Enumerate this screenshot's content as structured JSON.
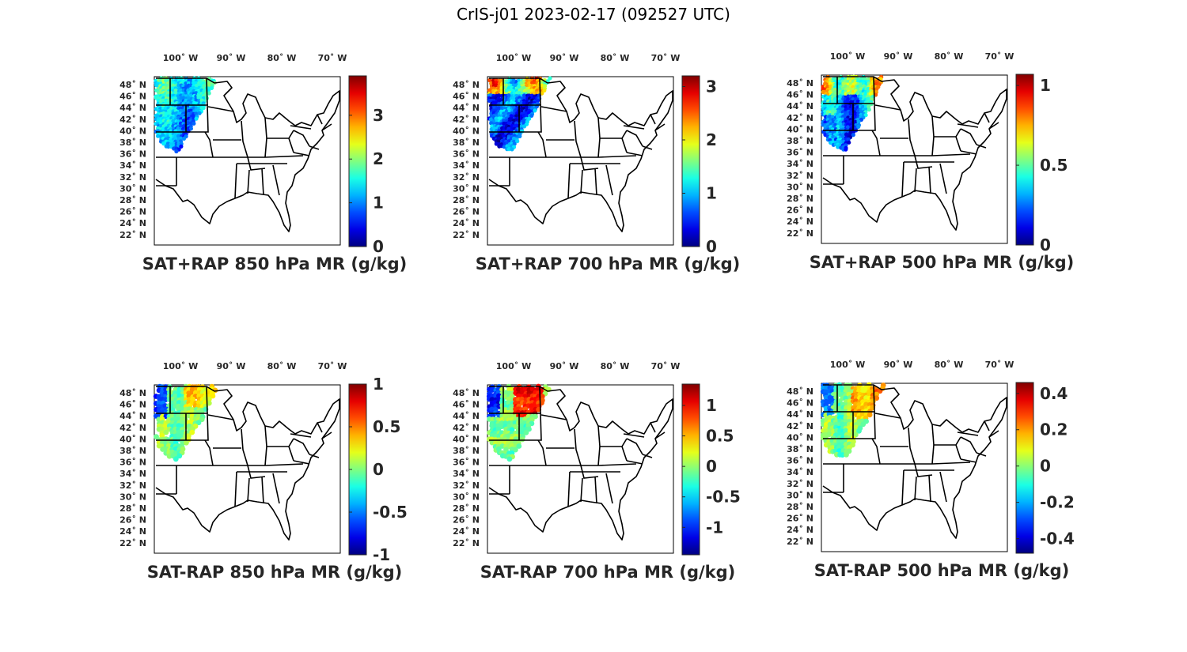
{
  "title": "CrIS-j01 2023-02-17 (092527 UTC)",
  "lon_labels": [
    "100˚ W",
    "90˚ W",
    "80˚ W",
    "70˚ W"
  ],
  "lat_labels": [
    "48˚ N",
    "46˚ N",
    "44˚ N",
    "42˚ N",
    "40˚ N",
    "38˚ N",
    "36˚ N",
    "34˚ N",
    "32˚ N",
    "30˚ N",
    "28˚ N",
    "26˚ N",
    "24˚ N",
    "22˚ N"
  ],
  "colormap": "jet",
  "panels": [
    {
      "label": "SAT+RAP 850 hPa MR (g/kg)",
      "type": "sum",
      "clim": [
        0,
        3.9
      ],
      "ticks": [
        "0",
        "1",
        "2",
        "3"
      ],
      "tick_values": [
        0,
        1,
        2,
        3
      ]
    },
    {
      "label": "SAT+RAP 700 hPa MR (g/kg)",
      "type": "sum",
      "clim": [
        0,
        3.2
      ],
      "ticks": [
        "0",
        "1",
        "2",
        "3"
      ],
      "tick_values": [
        0,
        1,
        2,
        3
      ]
    },
    {
      "label": "SAT+RAP 500 hPa MR (g/kg)",
      "type": "sum",
      "clim": [
        0,
        1.07
      ],
      "ticks": [
        "0",
        "0.5",
        "1"
      ],
      "tick_values": [
        0,
        0.5,
        1
      ]
    },
    {
      "label": "SAT-RAP 850 hPa MR (g/kg)",
      "type": "diff",
      "clim": [
        -1,
        1
      ],
      "ticks": [
        "-1",
        "-0.5",
        "0",
        "0.5",
        "1"
      ],
      "tick_values": [
        -1,
        -0.5,
        0,
        0.5,
        1
      ]
    },
    {
      "label": "SAT-RAP 700 hPa MR (g/kg)",
      "type": "diff",
      "clim": [
        -1.45,
        1.35
      ],
      "ticks": [
        "-1",
        "-0.5",
        "0",
        "0.5",
        "1"
      ],
      "tick_values": [
        -1,
        -0.5,
        0,
        0.5,
        1
      ]
    },
    {
      "label": "SAT-RAP 500 hPa MR (g/kg)",
      "type": "diff",
      "clim": [
        -0.48,
        0.46
      ],
      "ticks": [
        "-0.4",
        "-0.2",
        "0",
        "0.2",
        "0.4"
      ],
      "tick_values": [
        -0.4,
        -0.2,
        0,
        0.2,
        0.4
      ]
    }
  ]
}
